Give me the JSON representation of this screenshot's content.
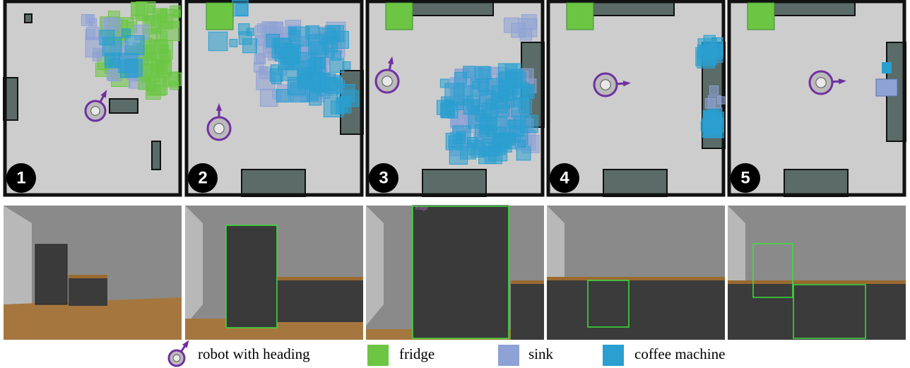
{
  "panels": [
    {
      "label": "1"
    },
    {
      "label": "2"
    },
    {
      "label": "3"
    },
    {
      "label": "4"
    },
    {
      "label": "5"
    }
  ],
  "camera_annotations": [
    {
      "label": "fridge"
    }
  ],
  "legend": [
    {
      "label": "robot with heading",
      "color": "#7030a0"
    },
    {
      "label": "fridge",
      "color": "#6cc644"
    },
    {
      "label": "sink",
      "color": "#8ea2d6"
    },
    {
      "label": "coffee machine",
      "color": "#2a9fd0"
    }
  ]
}
